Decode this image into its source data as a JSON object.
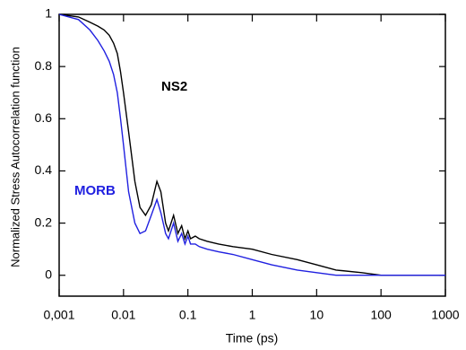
{
  "chart_data": {
    "type": "line",
    "x_label": "Time (ps)",
    "y_label": "Normalized Stress Autocorrelation function",
    "xscale": "log",
    "x": [
      0.001,
      0.002,
      0.003,
      0.004,
      0.005,
      0.006,
      0.007,
      0.008,
      0.009,
      0.01,
      0.012,
      0.015,
      0.018,
      0.022,
      0.027,
      0.033,
      0.038,
      0.045,
      0.05,
      0.06,
      0.07,
      0.08,
      0.09,
      0.1,
      0.11,
      0.13,
      0.15,
      0.2,
      0.3,
      0.5,
      1,
      2,
      5,
      10,
      20,
      50,
      100,
      300,
      1000
    ],
    "series": [
      {
        "name": "NS2",
        "color": "#000000",
        "values": [
          1,
          0.99,
          0.97,
          0.955,
          0.94,
          0.92,
          0.89,
          0.85,
          0.78,
          0.7,
          0.55,
          0.36,
          0.26,
          0.23,
          0.27,
          0.36,
          0.32,
          0.2,
          0.17,
          0.23,
          0.16,
          0.19,
          0.14,
          0.17,
          0.14,
          0.15,
          0.14,
          0.13,
          0.12,
          0.11,
          0.1,
          0.08,
          0.06,
          0.04,
          0.02,
          0.01,
          0,
          0,
          0
        ]
      },
      {
        "name": "MORB",
        "color": "#2020e0",
        "values": [
          1,
          0.98,
          0.94,
          0.9,
          0.86,
          0.82,
          0.77,
          0.7,
          0.6,
          0.5,
          0.32,
          0.2,
          0.16,
          0.17,
          0.23,
          0.29,
          0.24,
          0.16,
          0.14,
          0.2,
          0.13,
          0.16,
          0.12,
          0.15,
          0.12,
          0.12,
          0.11,
          0.1,
          0.09,
          0.08,
          0.06,
          0.04,
          0.02,
          0.01,
          0,
          0,
          0,
          0,
          0
        ]
      }
    ],
    "xlim": [
      0.001,
      1000
    ],
    "xticks": [
      {
        "value": 0.001,
        "label": "0,001"
      },
      0.01,
      0.1,
      1,
      10,
      100,
      1000
    ],
    "ylim": [
      -0.08,
      1
    ],
    "yticks": [
      0,
      0.2,
      0.4,
      0.6,
      0.8,
      1
    ],
    "grid": false
  }
}
